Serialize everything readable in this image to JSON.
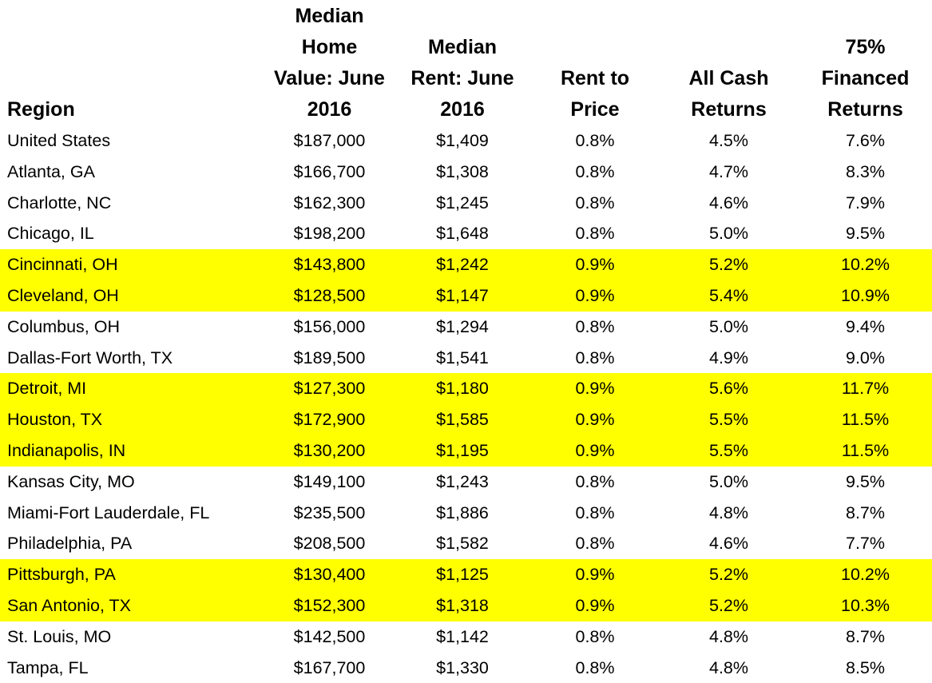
{
  "chart_data": {
    "type": "table",
    "columns": [
      [
        "Region"
      ],
      [
        "Median",
        "Home",
        "Value: June",
        "2016"
      ],
      [
        "Median",
        "Rent: June",
        "2016"
      ],
      [
        "Rent to",
        "Price"
      ],
      [
        "All Cash",
        "Returns"
      ],
      [
        "75%",
        "Financed",
        "Returns"
      ]
    ],
    "highlight_color": "#ffff00",
    "rows": [
      {
        "cells": [
          "United States",
          "$187,000",
          "$1,409",
          "0.8%",
          "4.5%",
          "7.6%"
        ],
        "highlighted": false
      },
      {
        "cells": [
          "Atlanta, GA",
          "$166,700",
          "$1,308",
          "0.8%",
          "4.7%",
          "8.3%"
        ],
        "highlighted": false
      },
      {
        "cells": [
          "Charlotte, NC",
          "$162,300",
          "$1,245",
          "0.8%",
          "4.6%",
          "7.9%"
        ],
        "highlighted": false
      },
      {
        "cells": [
          "Chicago, IL",
          "$198,200",
          "$1,648",
          "0.8%",
          "5.0%",
          "9.5%"
        ],
        "highlighted": false
      },
      {
        "cells": [
          "Cincinnati, OH",
          "$143,800",
          "$1,242",
          "0.9%",
          "5.2%",
          "10.2%"
        ],
        "highlighted": true
      },
      {
        "cells": [
          "Cleveland, OH",
          "$128,500",
          "$1,147",
          "0.9%",
          "5.4%",
          "10.9%"
        ],
        "highlighted": true
      },
      {
        "cells": [
          "Columbus, OH",
          "$156,000",
          "$1,294",
          "0.8%",
          "5.0%",
          "9.4%"
        ],
        "highlighted": false
      },
      {
        "cells": [
          "Dallas-Fort Worth, TX",
          "$189,500",
          "$1,541",
          "0.8%",
          "4.9%",
          "9.0%"
        ],
        "highlighted": false
      },
      {
        "cells": [
          "Detroit, MI",
          "$127,300",
          "$1,180",
          "0.9%",
          "5.6%",
          "11.7%"
        ],
        "highlighted": true
      },
      {
        "cells": [
          "Houston, TX",
          "$172,900",
          "$1,585",
          "0.9%",
          "5.5%",
          "11.5%"
        ],
        "highlighted": true
      },
      {
        "cells": [
          "Indianapolis, IN",
          "$130,200",
          "$1,195",
          "0.9%",
          "5.5%",
          "11.5%"
        ],
        "highlighted": true
      },
      {
        "cells": [
          "Kansas City, MO",
          "$149,100",
          "$1,243",
          "0.8%",
          "5.0%",
          "9.5%"
        ],
        "highlighted": false
      },
      {
        "cells": [
          "Miami-Fort Lauderdale, FL",
          "$235,500",
          "$1,886",
          "0.8%",
          "4.8%",
          "8.7%"
        ],
        "highlighted": false
      },
      {
        "cells": [
          "Philadelphia, PA",
          "$208,500",
          "$1,582",
          "0.8%",
          "4.6%",
          "7.7%"
        ],
        "highlighted": false
      },
      {
        "cells": [
          "Pittsburgh, PA",
          "$130,400",
          "$1,125",
          "0.9%",
          "5.2%",
          "10.2%"
        ],
        "highlighted": true
      },
      {
        "cells": [
          "San Antonio, TX",
          "$152,300",
          "$1,318",
          "0.9%",
          "5.2%",
          "10.3%"
        ],
        "highlighted": true
      },
      {
        "cells": [
          "St. Louis, MO",
          "$142,500",
          "$1,142",
          "0.8%",
          "4.8%",
          "8.7%"
        ],
        "highlighted": false
      },
      {
        "cells": [
          "Tampa, FL",
          "$167,700",
          "$1,330",
          "0.8%",
          "4.8%",
          "8.5%"
        ],
        "highlighted": false
      }
    ]
  }
}
